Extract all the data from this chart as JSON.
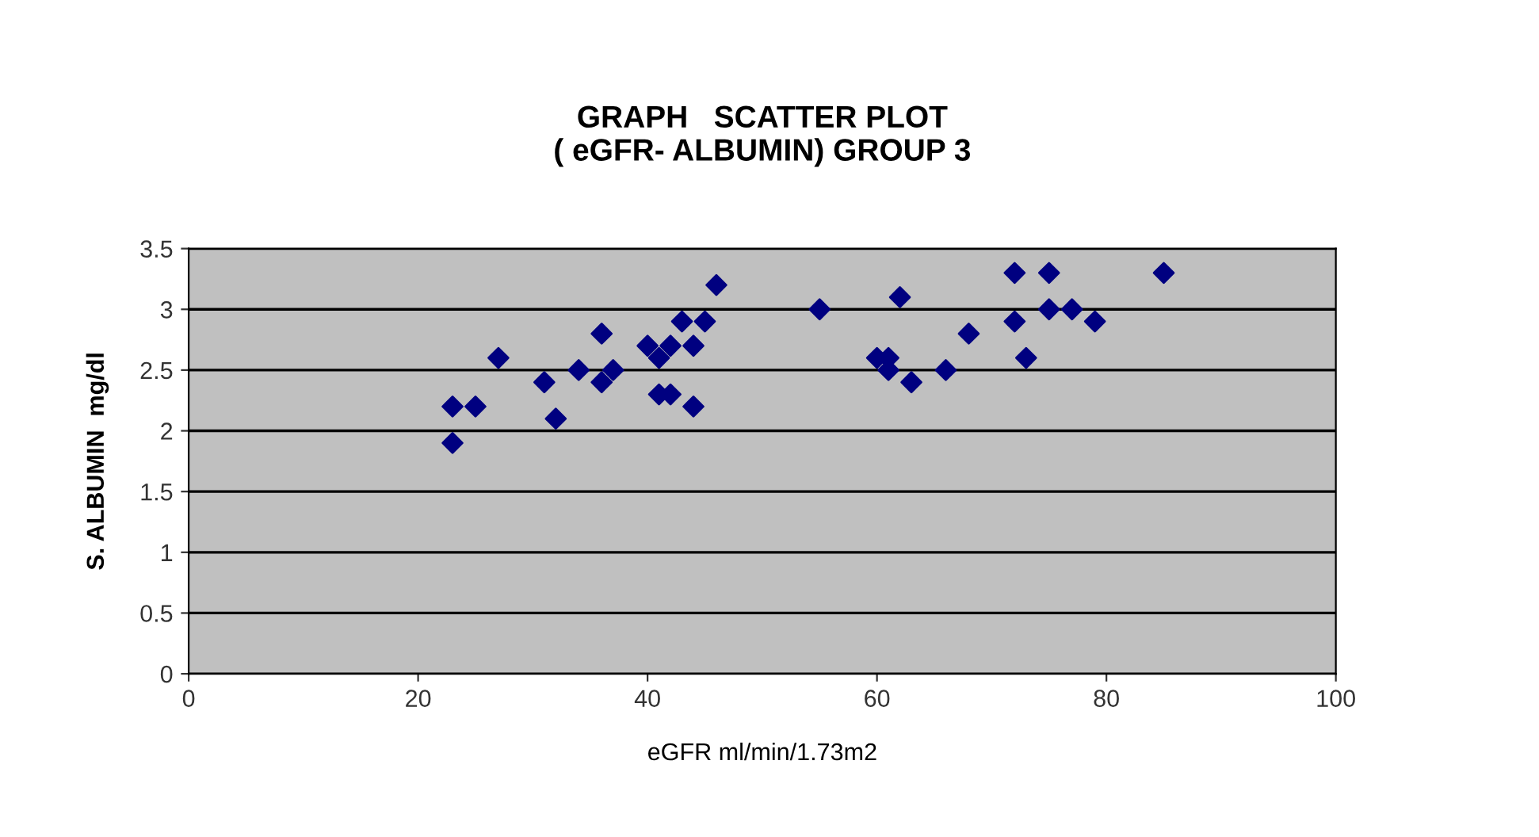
{
  "chart_data": {
    "type": "scatter",
    "title": "GRAPH   SCATTER PLOT\n( eGFR- ALBUMIN) GROUP 3",
    "xlabel": "eGFR ml/min/1.73m2",
    "ylabel": "S. ALBUMIN  mg/dl",
    "series": [
      {
        "color": "#000080",
        "x": [
          23,
          23,
          25,
          27,
          31,
          32,
          34,
          36,
          36,
          37,
          40,
          41,
          41,
          42,
          42,
          43,
          44,
          44,
          45,
          46,
          55,
          60,
          61,
          61,
          62,
          63,
          66,
          68,
          72,
          72,
          73,
          75,
          75,
          77,
          79,
          85
        ],
        "values": [
          2.2,
          1.9,
          2.2,
          2.6,
          2.4,
          2.1,
          2.5,
          2.8,
          2.4,
          2.5,
          2.7,
          2.3,
          2.6,
          2.7,
          2.3,
          2.9,
          2.7,
          2.2,
          2.9,
          3.2,
          3.0,
          2.6,
          2.6,
          2.5,
          3.1,
          2.4,
          2.5,
          2.8,
          3.3,
          2.9,
          2.6,
          3.3,
          3.0,
          3.0,
          2.9,
          3.3
        ]
      }
    ],
    "marker": "diamond",
    "grid": "y",
    "legend": false,
    "xlim": [
      0,
      100
    ],
    "xticks": [
      0,
      20,
      40,
      60,
      80,
      100
    ],
    "ylim": [
      0,
      3.5
    ],
    "yticks": [
      0,
      0.5,
      1,
      1.5,
      2,
      2.5,
      3,
      3.5
    ]
  }
}
